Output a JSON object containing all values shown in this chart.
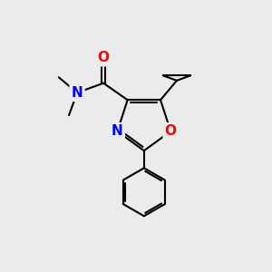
{
  "background_color": "#ebebeb",
  "bond_color": "#000000",
  "bond_width": 1.5,
  "atom_colors": {
    "O": "#ff0000",
    "N": "#0000ff",
    "C": "#000000"
  },
  "font_size_atoms": 11,
  "font_size_methyl": 9.5
}
